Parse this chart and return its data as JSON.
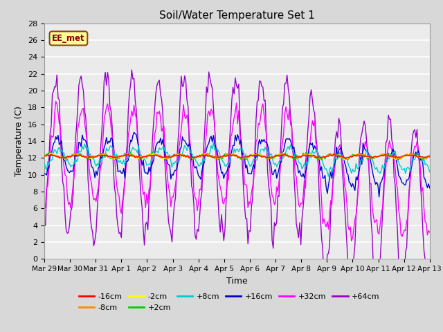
{
  "title": "Soil/Water Temperature Set 1",
  "xlabel": "Time",
  "ylabel": "Temperature (C)",
  "ylim": [
    0,
    28
  ],
  "yticks": [
    0,
    2,
    4,
    6,
    8,
    10,
    12,
    14,
    16,
    18,
    20,
    22,
    24,
    26,
    28
  ],
  "x_labels": [
    "Mar 29",
    "Mar 30",
    "Mar 31",
    "Apr 1",
    "Apr 2",
    "Apr 3",
    "Apr 4",
    "Apr 5",
    "Apr 6",
    "Apr 7",
    "Apr 8",
    "Apr 9",
    "Apr 10",
    "Apr 11",
    "Apr 12",
    "Apr 13"
  ],
  "station_label": "EE_met",
  "station_label_color": "#8B0000",
  "station_box_facecolor": "#FFFF99",
  "station_box_edgecolor": "#8B4513",
  "colors": {
    "neg16": "#FF0000",
    "neg8": "#FF8800",
    "neg2": "#FFFF00",
    "pos2": "#00CC00",
    "pos8": "#00CCCC",
    "pos16": "#0000CC",
    "pos32": "#FF00FF",
    "pos64": "#9900CC"
  },
  "legend_row1": [
    {
      "label": "-16cm",
      "color": "#FF0000"
    },
    {
      "label": "-8cm",
      "color": "#FF8800"
    },
    {
      "label": "-2cm",
      "color": "#FFFF00"
    },
    {
      "label": "+2cm",
      "color": "#00CC00"
    },
    {
      "label": "+8cm",
      "color": "#00CCCC"
    },
    {
      "label": "+16cm",
      "color": "#0000CC"
    }
  ],
  "legend_row2": [
    {
      "label": "+32cm",
      "color": "#FF00FF"
    },
    {
      "label": "+64cm",
      "color": "#9900CC"
    }
  ],
  "fig_bg": "#D8D8D8",
  "plot_bg": "#EBEBEB",
  "base_temp": 12.2,
  "n_points": 336
}
